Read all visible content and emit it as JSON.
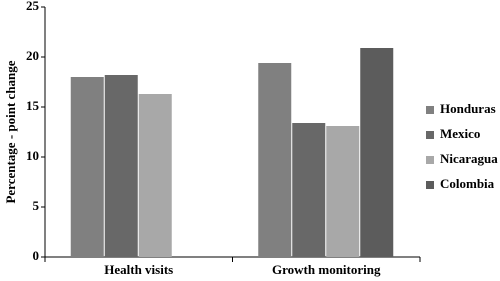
{
  "chart_data": {
    "type": "bar",
    "y_label": "Percentage - point change",
    "categories": [
      "Health visits",
      "Growth monitoring"
    ],
    "series": [
      {
        "name": "Honduras",
        "color": "#808080",
        "values": [
          18.0,
          19.4
        ]
      },
      {
        "name": "Mexico",
        "color": "#686868",
        "values": [
          18.2,
          13.4
        ]
      },
      {
        "name": "Nicaragua",
        "color": "#a8a8a8",
        "values": [
          16.3,
          13.1
        ]
      },
      {
        "name": "Colombia",
        "color": "#5c5c5c",
        "values": [
          null,
          20.9
        ]
      }
    ],
    "ylim": [
      0,
      25
    ],
    "yticks": [
      0,
      5,
      10,
      15,
      20,
      25
    ],
    "legend": "right"
  }
}
